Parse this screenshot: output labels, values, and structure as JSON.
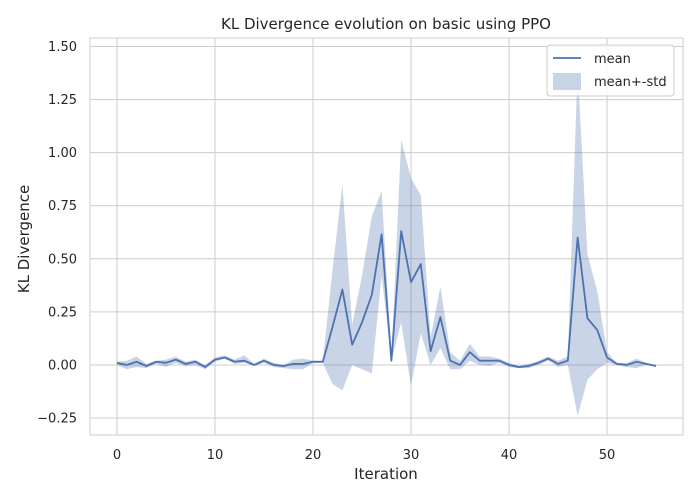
{
  "chart_data": {
    "type": "line",
    "title": "KL Divergence evolution on basic using PPO",
    "xlabel": "Iteration",
    "ylabel": "KL Divergence",
    "xlim": [
      -2.75,
      57.75
    ],
    "ylim": [
      -0.33,
      1.54
    ],
    "xticks": [
      0,
      10,
      20,
      30,
      40,
      50
    ],
    "yticks": [
      -0.25,
      0.0,
      0.25,
      0.5,
      0.75,
      1.0,
      1.25,
      1.5
    ],
    "ytick_labels": [
      "−0.25",
      "0.00",
      "0.25",
      "0.50",
      "0.75",
      "1.00",
      "1.25",
      "1.50"
    ],
    "grid": true,
    "legend_position": "top-right",
    "colors": {
      "line": "#4c72b0",
      "band": "#4c72b0",
      "grid": "#cccccc",
      "frame": "#cccccc"
    },
    "x": [
      0,
      1,
      2,
      3,
      4,
      5,
      6,
      7,
      8,
      9,
      10,
      11,
      12,
      13,
      14,
      15,
      16,
      17,
      18,
      19,
      20,
      21,
      22,
      23,
      24,
      25,
      26,
      27,
      28,
      29,
      30,
      31,
      32,
      33,
      34,
      35,
      36,
      37,
      38,
      39,
      40,
      41,
      42,
      43,
      44,
      45,
      46,
      47,
      48,
      49,
      50,
      51,
      52,
      53,
      54,
      55
    ],
    "series": [
      {
        "name": "mean",
        "values": [
          0.01,
          0.0,
          0.015,
          -0.005,
          0.015,
          0.01,
          0.025,
          0.005,
          0.015,
          -0.01,
          0.025,
          0.035,
          0.015,
          0.02,
          0.0,
          0.02,
          0.0,
          -0.005,
          0.005,
          0.005,
          0.015,
          0.015,
          0.18,
          0.355,
          0.095,
          0.2,
          0.33,
          0.615,
          0.02,
          0.63,
          0.39,
          0.475,
          0.065,
          0.225,
          0.02,
          0.0,
          0.06,
          0.02,
          0.02,
          0.02,
          0.0,
          -0.01,
          -0.005,
          0.01,
          0.03,
          0.005,
          0.02,
          0.6,
          0.22,
          0.165,
          0.035,
          0.005,
          0.0,
          0.015,
          0.005,
          -0.005
        ]
      },
      {
        "name": "mean+-std",
        "lower": [
          0.0,
          -0.02,
          -0.01,
          -0.015,
          0.005,
          -0.01,
          0.01,
          -0.005,
          0.0,
          -0.02,
          0.015,
          0.03,
          0.005,
          0.01,
          -0.005,
          0.01,
          -0.01,
          -0.015,
          -0.02,
          -0.02,
          0.01,
          0.01,
          -0.09,
          -0.12,
          0.0,
          -0.02,
          -0.04,
          0.42,
          0.02,
          0.2,
          -0.1,
          0.15,
          0.0,
          0.08,
          -0.02,
          -0.02,
          0.02,
          0.0,
          -0.005,
          0.01,
          -0.01,
          -0.015,
          -0.015,
          0.0,
          0.02,
          -0.01,
          0.0,
          -0.24,
          -0.07,
          -0.02,
          0.01,
          0.0,
          -0.01,
          -0.015,
          0.0,
          -0.01
        ],
        "upper": [
          0.015,
          0.02,
          0.04,
          0.005,
          0.02,
          0.025,
          0.04,
          0.015,
          0.025,
          0.0,
          0.035,
          0.045,
          0.025,
          0.045,
          0.005,
          0.03,
          0.01,
          0.0,
          0.025,
          0.03,
          0.02,
          0.02,
          0.45,
          0.85,
          0.19,
          0.42,
          0.7,
          0.82,
          0.03,
          1.06,
          0.88,
          0.8,
          0.13,
          0.37,
          0.06,
          0.02,
          0.1,
          0.04,
          0.04,
          0.03,
          0.01,
          -0.005,
          0.005,
          0.02,
          0.04,
          0.02,
          0.04,
          1.4,
          0.52,
          0.35,
          0.06,
          0.01,
          0.01,
          0.03,
          0.01,
          0.0
        ]
      }
    ]
  }
}
